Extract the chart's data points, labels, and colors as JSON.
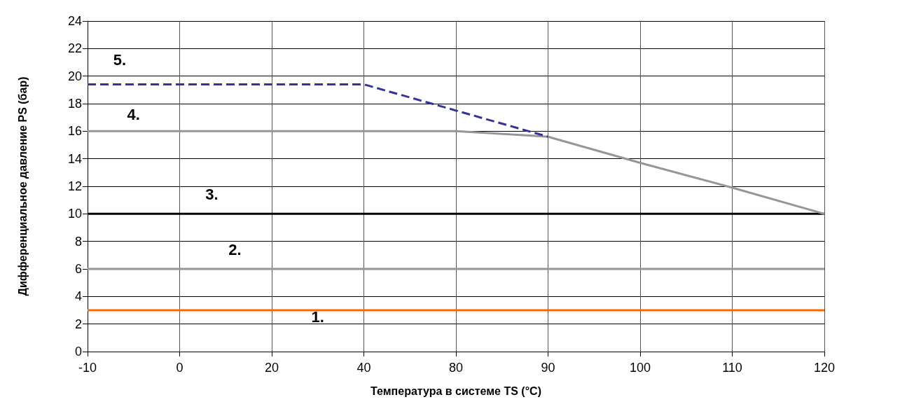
{
  "chart_data": {
    "type": "line",
    "xlabel": "Температура в системе TS (°C)",
    "ylabel": "Дифференциальное давление PS (бар)",
    "categories": [
      "-10",
      "0",
      "20",
      "40",
      "80",
      "90",
      "100",
      "110",
      "120"
    ],
    "ylim": [
      0,
      24
    ],
    "yticks": [
      0,
      2,
      4,
      6,
      8,
      10,
      12,
      14,
      16,
      18,
      20,
      22,
      24
    ],
    "grid": true,
    "marker": "none",
    "annotations": [
      "1.",
      "2.",
      "3.",
      "4.",
      "5."
    ],
    "series": [
      {
        "color": "#ff6600",
        "values": [
          3,
          3,
          3,
          3,
          3,
          3,
          3,
          3,
          3
        ]
      },
      {
        "color": "#969696",
        "values": [
          6,
          6,
          6,
          6,
          6,
          6,
          6,
          6,
          6
        ]
      },
      {
        "color": "#000000",
        "values": [
          10,
          10,
          10,
          10,
          10,
          10,
          10,
          10,
          10
        ]
      },
      {
        "color": "#969696",
        "values": [
          16,
          16,
          16,
          16,
          16,
          15.6,
          13.7,
          11.9,
          10
        ]
      },
      {
        "color": "#333399",
        "line_style": "dashed",
        "values": [
          19.4,
          19.4,
          19.4,
          19.4,
          17.5,
          15.6,
          null,
          null,
          null
        ]
      }
    ]
  }
}
